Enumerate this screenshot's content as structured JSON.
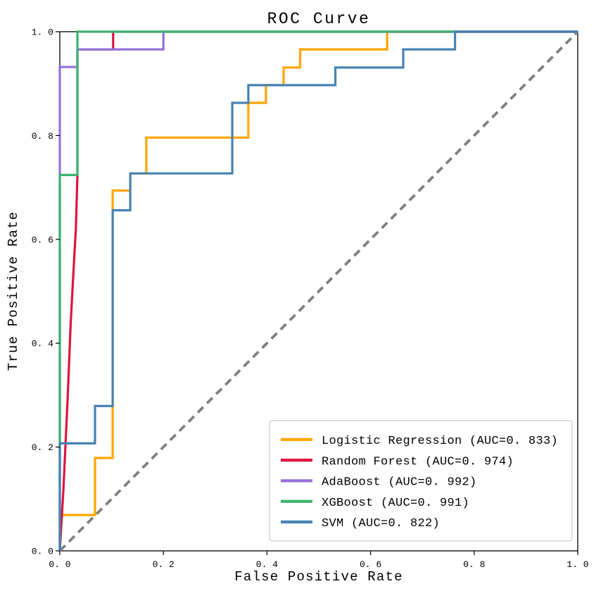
{
  "chart_data": {
    "type": "line",
    "title": "ROC Curve",
    "xlabel": "False Positive Rate",
    "ylabel": "True Positive Rate",
    "xlim": [
      0.0,
      1.0
    ],
    "ylim": [
      0.0,
      1.0
    ],
    "grid": false,
    "x_tick_values": [
      0.0,
      0.2,
      0.4,
      0.6,
      0.8,
      1.0
    ],
    "y_tick_values": [
      0.0,
      0.2,
      0.4,
      0.6,
      0.8,
      1.0
    ],
    "x_tick_labels": [
      "0. 0",
      "0. 2",
      "0. 4",
      "0. 6",
      "0. 8",
      "1. 0"
    ],
    "y_tick_labels": [
      "0. 0",
      "0. 2",
      "0. 4",
      "0. 6",
      "0. 8",
      "1. 0"
    ],
    "legend_position": "lower right",
    "legend_border_color": "#cccccc",
    "legend_background": "#ffffff",
    "reference_line": {
      "name": "chance-diagonal",
      "from": [
        0.0,
        0.0
      ],
      "to": [
        1.0,
        1.0
      ],
      "color": "#808080",
      "style": "dashed",
      "width": 3.8
    },
    "series": [
      {
        "name": "Logistic Regression",
        "auc": 0.833,
        "legend_label": "Logistic Regression (AUC=0. 833)",
        "color": "#FFA500",
        "points": [
          [
            0,
            0
          ],
          [
            0,
            0.069
          ],
          [
            0.068,
            0.069
          ],
          [
            0.068,
            0.179
          ],
          [
            0.102,
            0.179
          ],
          [
            0.102,
            0.694
          ],
          [
            0.136,
            0.694
          ],
          [
            0.136,
            0.727
          ],
          [
            0.167,
            0.727
          ],
          [
            0.167,
            0.796
          ],
          [
            0.364,
            0.796
          ],
          [
            0.364,
            0.863
          ],
          [
            0.398,
            0.863
          ],
          [
            0.398,
            0.897
          ],
          [
            0.432,
            0.897
          ],
          [
            0.432,
            0.931
          ],
          [
            0.464,
            0.931
          ],
          [
            0.464,
            0.966
          ],
          [
            0.632,
            0.966
          ],
          [
            0.632,
            1
          ],
          [
            1,
            1
          ]
        ]
      },
      {
        "name": "Random Forest",
        "auc": 0.974,
        "legend_label": "Random Forest (AUC=0. 974)",
        "color": "#DC143C",
        "points": [
          [
            0,
            0
          ],
          [
            0.007,
            0.12
          ],
          [
            0.015,
            0.29
          ],
          [
            0.021,
            0.44
          ],
          [
            0.027,
            0.55
          ],
          [
            0.031,
            0.62
          ],
          [
            0.034,
            0.724
          ],
          [
            0.034,
            0.966
          ],
          [
            0.103,
            0.966
          ],
          [
            0.103,
            1
          ],
          [
            1,
            1
          ]
        ]
      },
      {
        "name": "AdaBoost",
        "auc": 0.992,
        "legend_label": "AdaBoost (AUC=0. 992)",
        "color": "#9370DB",
        "points": [
          [
            0,
            0
          ],
          [
            0,
            0.932
          ],
          [
            0.034,
            0.932
          ],
          [
            0.034,
            0.966
          ],
          [
            0.2,
            0.966
          ],
          [
            0.2,
            1
          ],
          [
            1,
            1
          ]
        ]
      },
      {
        "name": "XGBoost",
        "auc": 0.991,
        "legend_label": "XGBoost (AUC=0. 991)",
        "color": "#3CB371",
        "points": [
          [
            0,
            0
          ],
          [
            0,
            0.724
          ],
          [
            0.034,
            0.724
          ],
          [
            0.034,
            1
          ],
          [
            1,
            1
          ]
        ]
      },
      {
        "name": "SVM",
        "auc": 0.822,
        "legend_label": "SVM (AUC=0. 822)",
        "color": "#4682B4",
        "points": [
          [
            0,
            0
          ],
          [
            0,
            0.207
          ],
          [
            0.068,
            0.207
          ],
          [
            0.068,
            0.279
          ],
          [
            0.102,
            0.279
          ],
          [
            0.102,
            0.656
          ],
          [
            0.136,
            0.656
          ],
          [
            0.136,
            0.727
          ],
          [
            0.333,
            0.727
          ],
          [
            0.333,
            0.863
          ],
          [
            0.364,
            0.863
          ],
          [
            0.364,
            0.897
          ],
          [
            0.532,
            0.897
          ],
          [
            0.532,
            0.931
          ],
          [
            0.663,
            0.931
          ],
          [
            0.663,
            0.966
          ],
          [
            0.763,
            0.966
          ],
          [
            0.763,
            1
          ],
          [
            1,
            1
          ]
        ]
      }
    ]
  }
}
